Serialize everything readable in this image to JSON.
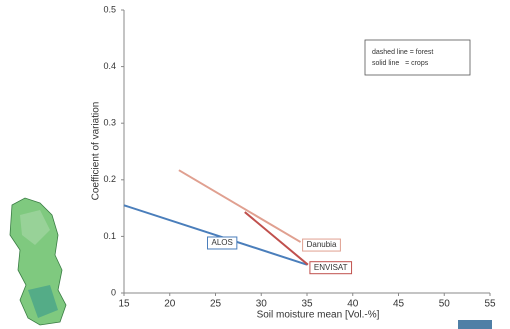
{
  "chart_data": {
    "type": "line",
    "xlabel": "Soil moisture mean [Vol.-%]",
    "ylabel": "Coefficient of variation",
    "xlim": [
      15,
      55
    ],
    "xticks": [
      15,
      20,
      25,
      30,
      35,
      40,
      45,
      50,
      55
    ],
    "ylim": [
      0,
      0.5
    ],
    "yticks": [
      0,
      0.1,
      0.2,
      0.3,
      0.4,
      0.5
    ],
    "annotations": [
      "dashed line = forest",
      "solid line   = crops"
    ],
    "series": [
      {
        "name": "ALOS",
        "color": "#4a7ebb",
        "x": [
          15,
          35
        ],
        "values": [
          0.155,
          0.05
        ]
      },
      {
        "name": "Danubia",
        "color": "#e0a090",
        "x": [
          21,
          34.3
        ],
        "values": [
          0.217,
          0.09
        ]
      },
      {
        "name": "ENVISAT",
        "color": "#c0504d",
        "x": [
          28.2,
          35.1
        ],
        "values": [
          0.143,
          0.05
        ]
      }
    ]
  }
}
